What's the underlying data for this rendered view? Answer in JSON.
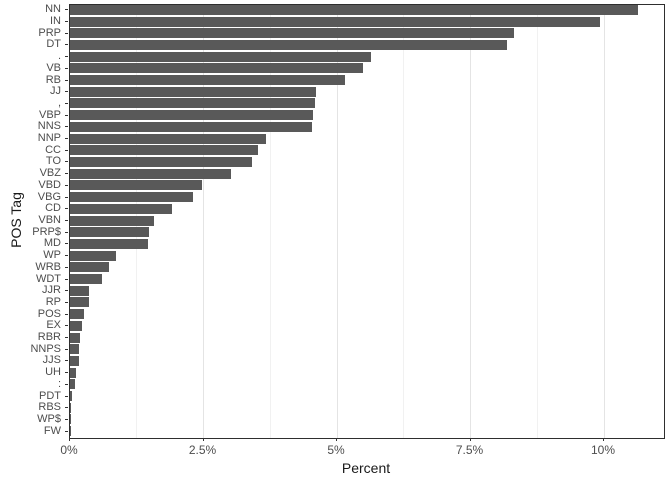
{
  "chart_data": {
    "type": "bar",
    "orientation": "horizontal",
    "title": "",
    "xlabel": "Percent",
    "ylabel": "POS Tag",
    "xlim": [
      0,
      11.12
    ],
    "x_major_ticks": [
      0,
      2.5,
      5,
      7.5,
      10
    ],
    "x_minor_ticks": [
      1.25,
      3.75,
      6.25,
      8.75
    ],
    "x_tick_labels": [
      "0%",
      "2.5%",
      "5%",
      "7.5%",
      "10%"
    ],
    "grid": true,
    "legend": "none",
    "categories": [
      "NN",
      "IN",
      "PRP",
      "DT",
      ".",
      "VB",
      "RB",
      "JJ",
      ",",
      "VBP",
      "NNS",
      "NNP",
      "CC",
      "TO",
      "VBZ",
      "VBD",
      "VBG",
      "CD",
      "VBN",
      "PRP$",
      "MD",
      "WP",
      "WRB",
      "WDT",
      "JJR",
      "RP",
      "POS",
      "EX",
      "RBR",
      "NNPS",
      "JJS",
      "UH",
      ":",
      "PDT",
      "RBS",
      "WP$",
      "FW"
    ],
    "values": [
      10.63,
      9.93,
      8.32,
      8.18,
      5.64,
      5.49,
      5.15,
      4.61,
      4.58,
      4.55,
      4.53,
      3.67,
      3.52,
      3.41,
      3.01,
      2.47,
      2.3,
      1.91,
      1.57,
      1.48,
      1.46,
      0.86,
      0.73,
      0.59,
      0.36,
      0.36,
      0.26,
      0.22,
      0.19,
      0.16,
      0.16,
      0.11,
      0.09,
      0.04,
      0.02,
      0.01,
      0.005
    ]
  },
  "colors": {
    "bar": "#595959",
    "grid_major": "#e4e4e4",
    "grid_minor": "#f1f1f1",
    "panel_border": "#2e2e2e",
    "tick_label": "#4d4d4d",
    "axis_title": "#1a1a1a",
    "background": "#ffffff"
  }
}
